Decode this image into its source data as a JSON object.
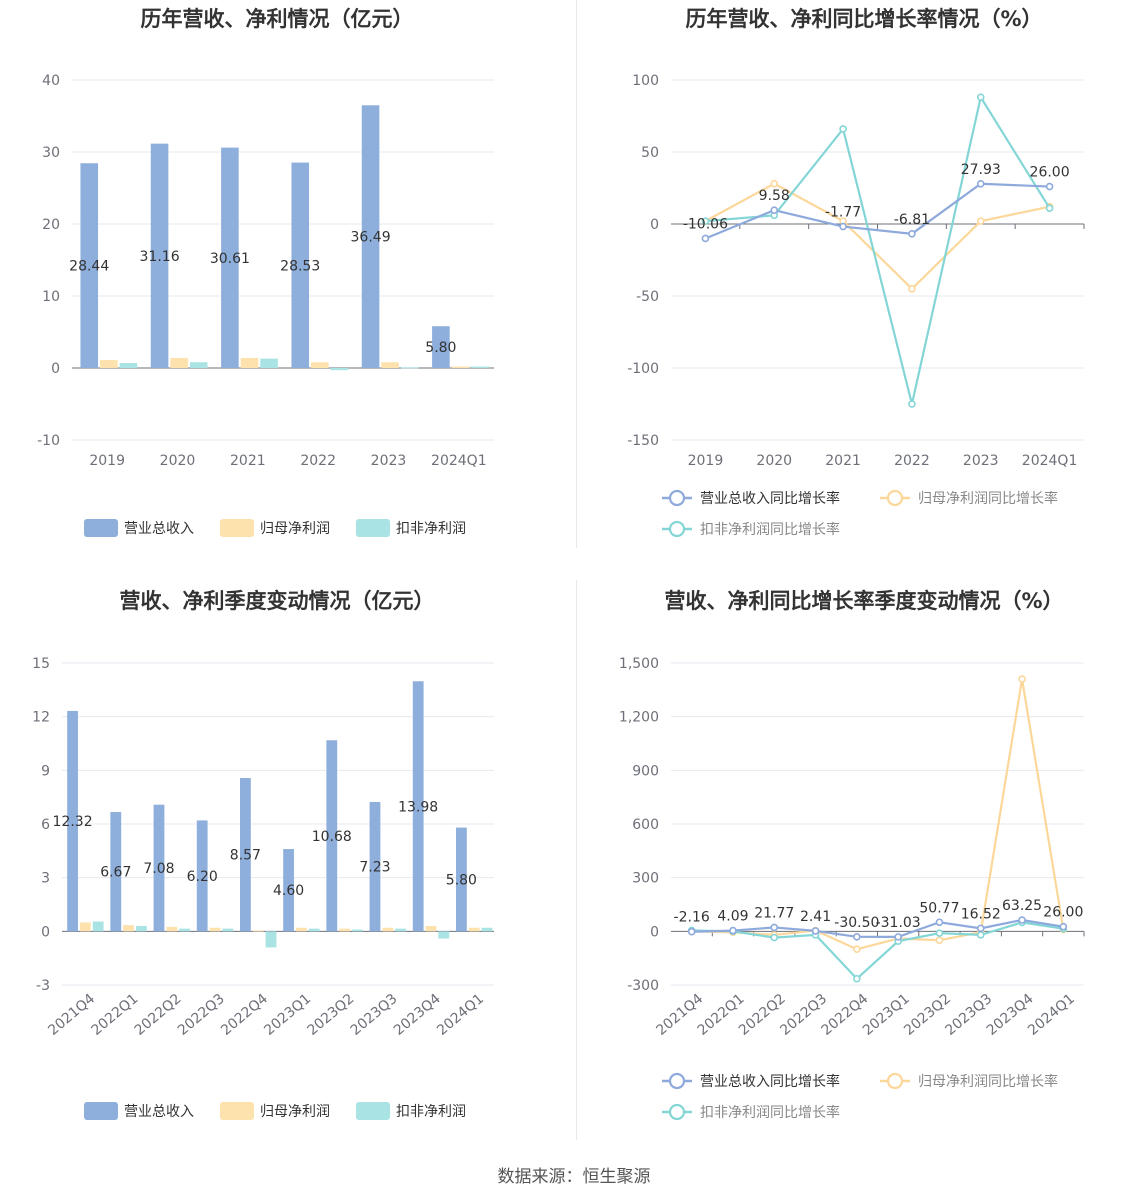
{
  "source": "数据来源：恒生聚源",
  "colors": {
    "revenue": "#8eaedc",
    "net_profit": "#fde2ae",
    "deducted_profit": "#a9e3e3",
    "revenue_line": "#8ea9dc",
    "net_profit_line": "#fcd79a",
    "deducted_line": "#84d6d6",
    "grid": "#e6e9f0",
    "axis": "#6e7079"
  },
  "chart_data": [
    {
      "id": "annual-bar",
      "type": "bar",
      "title": "历年营收、净利情况（亿元）",
      "categories": [
        "2019",
        "2020",
        "2021",
        "2022",
        "2023",
        "2024Q1"
      ],
      "yticks": [
        40,
        30,
        20,
        10,
        0,
        -10
      ],
      "ylim": [
        -10,
        40
      ],
      "series": [
        {
          "name": "营业总收入",
          "values": [
            28.44,
            31.16,
            30.61,
            28.53,
            36.49,
            5.8
          ]
        },
        {
          "name": "归母净利润",
          "values": [
            1.1,
            1.4,
            1.4,
            0.8,
            0.8,
            0.2
          ]
        },
        {
          "name": "扣非净利润",
          "values": [
            0.7,
            0.8,
            1.3,
            -0.3,
            0.1,
            0.2
          ]
        }
      ],
      "data_labels": [
        "28.44",
        "31.16",
        "30.61",
        "28.53",
        "36.49",
        "5.80"
      ],
      "legend": [
        "营业总收入",
        "归母净利润",
        "扣非净利润"
      ]
    },
    {
      "id": "annual-line",
      "type": "line",
      "title": "历年营收、净利同比增长率情况（%）",
      "categories": [
        "2019",
        "2020",
        "2021",
        "2022",
        "2023",
        "2024Q1"
      ],
      "yticks": [
        100,
        50,
        0,
        -50,
        -100,
        -150
      ],
      "ylim": [
        -150,
        100
      ],
      "series": [
        {
          "name": "营业总收入同比增长率",
          "values": [
            -10.06,
            9.58,
            -1.77,
            -6.81,
            27.93,
            26.0
          ]
        },
        {
          "name": "归母净利润同比增长率",
          "values": [
            2,
            28,
            2,
            -45,
            2,
            12
          ]
        },
        {
          "name": "扣非净利润同比增长率",
          "values": [
            2,
            6,
            66,
            -125,
            88,
            11
          ]
        }
      ],
      "data_labels": [
        "-10.06",
        "9.58",
        "-1.77",
        "-6.81",
        "27.93",
        "26.00"
      ],
      "legend": [
        "营业总收入同比增长率",
        "归母净利润同比增长率",
        "扣非净利润同比增长率"
      ]
    },
    {
      "id": "quarter-bar",
      "type": "bar",
      "title": "营收、净利季度变动情况（亿元）",
      "categories": [
        "2021Q4",
        "2022Q1",
        "2022Q2",
        "2022Q3",
        "2022Q4",
        "2023Q1",
        "2023Q2",
        "2023Q3",
        "2023Q4",
        "2024Q1"
      ],
      "yticks": [
        15,
        12,
        9,
        6,
        3,
        0,
        -3
      ],
      "ylim": [
        -3,
        15
      ],
      "series": [
        {
          "name": "营业总收入",
          "values": [
            12.32,
            6.67,
            7.08,
            6.2,
            8.57,
            4.6,
            10.68,
            7.23,
            13.98,
            5.8
          ]
        },
        {
          "name": "归母净利润",
          "values": [
            0.5,
            0.35,
            0.25,
            0.2,
            0.05,
            0.2,
            0.15,
            0.2,
            0.3,
            0.2
          ]
        },
        {
          "name": "扣非净利润",
          "values": [
            0.55,
            0.3,
            0.15,
            0.15,
            -0.9,
            0.15,
            0.1,
            0.15,
            -0.4,
            0.2
          ]
        }
      ],
      "data_labels": [
        "12.32",
        "6.67",
        "7.08",
        "6.20",
        "8.57",
        "4.60",
        "10.68",
        "7.23",
        "13.98",
        "5.80"
      ],
      "legend": [
        "营业总收入",
        "归母净利润",
        "扣非净利润"
      ]
    },
    {
      "id": "quarter-line",
      "type": "line",
      "title": "营收、净利同比增长率季度变动情况（%）",
      "categories": [
        "2021Q4",
        "2022Q1",
        "2022Q2",
        "2022Q3",
        "2022Q4",
        "2023Q1",
        "2023Q2",
        "2023Q3",
        "2023Q4",
        "2024Q1"
      ],
      "yticks": [
        "1,500",
        "1,200",
        "900",
        "600",
        "300",
        "0",
        "-300"
      ],
      "ylim": [
        -300,
        1500
      ],
      "series": [
        {
          "name": "营业总收入同比增长率",
          "values": [
            -2.16,
            4.09,
            21.77,
            2.41,
            -30.5,
            -31.03,
            50.77,
            16.52,
            63.25,
            26.0
          ]
        },
        {
          "name": "归母净利润同比增长率",
          "values": [
            0,
            -5,
            -20,
            5,
            -100,
            -40,
            -50,
            -5,
            1410,
            10
          ]
        },
        {
          "name": "扣非净利润同比增长率",
          "values": [
            5,
            0,
            -35,
            -20,
            -265,
            -55,
            -10,
            -20,
            50,
            15
          ]
        }
      ],
      "data_labels": [
        "-2.16",
        "4.09",
        "21.77",
        "2.41",
        "-30.50",
        "-31.03",
        "50.77",
        "16.52",
        "63.25",
        "26.00"
      ],
      "legend": [
        "营业总收入同比增长率",
        "归母净利润同比增长率",
        "扣非净利润同比增长率"
      ]
    }
  ]
}
